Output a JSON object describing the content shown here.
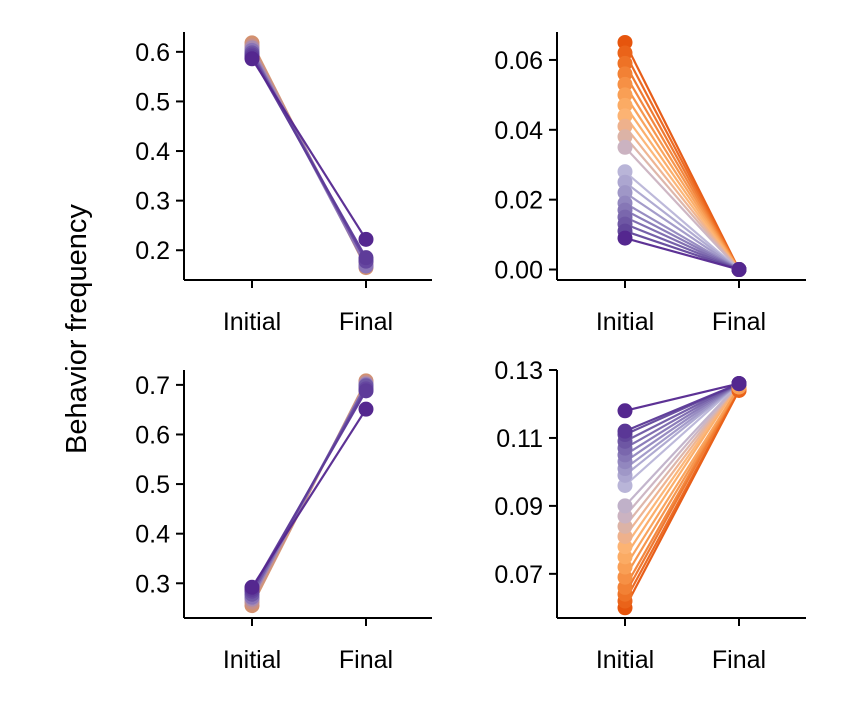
{
  "figure": {
    "ylabel": "Behavior frequency"
  },
  "colors": {
    "purple": "#54278f",
    "orange": "#e6550d",
    "light_purple": "#b9b5d8",
    "light_orange": "#fdb56b"
  },
  "chart_data": [
    {
      "type": "line",
      "panel": "top-left",
      "categories": [
        "Initial",
        "Final"
      ],
      "ylim": [
        0.14,
        0.64
      ],
      "yticks": [
        0.2,
        0.3,
        0.4,
        0.5,
        0.6
      ],
      "ytick_labels": [
        "0.2",
        "0.3",
        "0.4",
        "0.5",
        "0.6"
      ],
      "grid": false,
      "series": [
        {
          "values": [
            0.618,
            0.165
          ],
          "color": "#d3916f"
        },
        {
          "values": [
            0.612,
            0.17
          ],
          "color": "#c58f8a"
        },
        {
          "values": [
            0.608,
            0.175
          ],
          "color": "#a88bb0"
        },
        {
          "values": [
            0.603,
            0.168
          ],
          "color": "#8a74b6"
        },
        {
          "values": [
            0.598,
            0.18
          ],
          "color": "#7059a6"
        },
        {
          "values": [
            0.594,
            0.178
          ],
          "color": "#6647a0"
        },
        {
          "values": [
            0.59,
            0.185
          ],
          "color": "#5e3c99"
        },
        {
          "values": [
            0.586,
            0.222
          ],
          "color": "#54278f"
        }
      ]
    },
    {
      "type": "line",
      "panel": "top-right",
      "categories": [
        "Initial",
        "Final"
      ],
      "ylim": [
        -0.003,
        0.068
      ],
      "yticks": [
        0.0,
        0.02,
        0.04,
        0.06
      ],
      "ytick_labels": [
        "0.00",
        "0.02",
        "0.04",
        "0.06"
      ],
      "grid": false,
      "series": [
        {
          "values": [
            0.065,
            0.0
          ],
          "color": "#e6550d"
        },
        {
          "values": [
            0.062,
            0.0
          ],
          "color": "#ea6319"
        },
        {
          "values": [
            0.059,
            0.0
          ],
          "color": "#ee7226"
        },
        {
          "values": [
            0.056,
            0.0
          ],
          "color": "#f28135"
        },
        {
          "values": [
            0.053,
            0.0
          ],
          "color": "#f69045"
        },
        {
          "values": [
            0.05,
            0.0
          ],
          "color": "#f99f55"
        },
        {
          "values": [
            0.047,
            0.0
          ],
          "color": "#fbab64"
        },
        {
          "values": [
            0.044,
            0.0
          ],
          "color": "#fcb373"
        },
        {
          "values": [
            0.041,
            0.0
          ],
          "color": "#eeb18c"
        },
        {
          "values": [
            0.038,
            0.0
          ],
          "color": "#dcb3a6"
        },
        {
          "values": [
            0.035,
            0.0
          ],
          "color": "#cbb3c1"
        },
        {
          "values": [
            0.028,
            0.0
          ],
          "color": "#b9b5d8"
        },
        {
          "values": [
            0.025,
            0.0
          ],
          "color": "#aca6d0"
        },
        {
          "values": [
            0.022,
            0.0
          ],
          "color": "#9f97c7"
        },
        {
          "values": [
            0.019,
            0.0
          ],
          "color": "#9287bf"
        },
        {
          "values": [
            0.017,
            0.0
          ],
          "color": "#8677b6"
        },
        {
          "values": [
            0.015,
            0.0
          ],
          "color": "#7a67ad"
        },
        {
          "values": [
            0.013,
            0.0
          ],
          "color": "#6e57a4"
        },
        {
          "values": [
            0.011,
            0.0
          ],
          "color": "#62479b"
        },
        {
          "values": [
            0.009,
            0.0
          ],
          "color": "#54278f"
        }
      ]
    },
    {
      "type": "line",
      "panel": "bottom-left",
      "categories": [
        "Initial",
        "Final"
      ],
      "ylim": [
        0.23,
        0.73
      ],
      "yticks": [
        0.3,
        0.4,
        0.5,
        0.6,
        0.7
      ],
      "ytick_labels": [
        "0.3",
        "0.4",
        "0.5",
        "0.6",
        "0.7"
      ],
      "grid": false,
      "series": [
        {
          "values": [
            0.255,
            0.708
          ],
          "color": "#d3916f"
        },
        {
          "values": [
            0.262,
            0.705
          ],
          "color": "#c58f8a"
        },
        {
          "values": [
            0.268,
            0.702
          ],
          "color": "#a88bb0"
        },
        {
          "values": [
            0.272,
            0.7
          ],
          "color": "#8a74b6"
        },
        {
          "values": [
            0.278,
            0.698
          ],
          "color": "#7059a6"
        },
        {
          "values": [
            0.284,
            0.692
          ],
          "color": "#6647a0"
        },
        {
          "values": [
            0.288,
            0.688
          ],
          "color": "#5e3c99"
        },
        {
          "values": [
            0.292,
            0.651
          ],
          "color": "#54278f"
        }
      ]
    },
    {
      "type": "line",
      "panel": "bottom-right",
      "categories": [
        "Initial",
        "Final"
      ],
      "ylim": [
        0.057,
        0.13
      ],
      "yticks": [
        0.07,
        0.09,
        0.11,
        0.13
      ],
      "ytick_labels": [
        "0.07",
        "0.09",
        "0.11",
        "0.13"
      ],
      "grid": false,
      "series": [
        {
          "values": [
            0.06,
            0.124
          ],
          "color": "#e6550d"
        },
        {
          "values": [
            0.062,
            0.124
          ],
          "color": "#ea6319"
        },
        {
          "values": [
            0.064,
            0.125
          ],
          "color": "#ee7226"
        },
        {
          "values": [
            0.066,
            0.125
          ],
          "color": "#f28135"
        },
        {
          "values": [
            0.069,
            0.125
          ],
          "color": "#f69045"
        },
        {
          "values": [
            0.072,
            0.125
          ],
          "color": "#f99f55"
        },
        {
          "values": [
            0.075,
            0.126
          ],
          "color": "#fbab64"
        },
        {
          "values": [
            0.078,
            0.126
          ],
          "color": "#fcb373"
        },
        {
          "values": [
            0.081,
            0.126
          ],
          "color": "#eeb18c"
        },
        {
          "values": [
            0.084,
            0.126
          ],
          "color": "#dcb3a6"
        },
        {
          "values": [
            0.087,
            0.126
          ],
          "color": "#cbb3c1"
        },
        {
          "values": [
            0.09,
            0.126
          ],
          "color": "#c0b1c9"
        },
        {
          "values": [
            0.096,
            0.126
          ],
          "color": "#b9b5d8"
        },
        {
          "values": [
            0.099,
            0.126
          ],
          "color": "#aca6d0"
        },
        {
          "values": [
            0.101,
            0.126
          ],
          "color": "#9f97c7"
        },
        {
          "values": [
            0.103,
            0.126
          ],
          "color": "#9287bf"
        },
        {
          "values": [
            0.105,
            0.126
          ],
          "color": "#8677b6"
        },
        {
          "values": [
            0.107,
            0.126
          ],
          "color": "#7a67ad"
        },
        {
          "values": [
            0.109,
            0.126
          ],
          "color": "#6e57a4"
        },
        {
          "values": [
            0.111,
            0.126
          ],
          "color": "#62479b"
        },
        {
          "values": [
            0.112,
            0.126
          ],
          "color": "#5a3796"
        },
        {
          "values": [
            0.118,
            0.126
          ],
          "color": "#54278f"
        }
      ]
    }
  ]
}
